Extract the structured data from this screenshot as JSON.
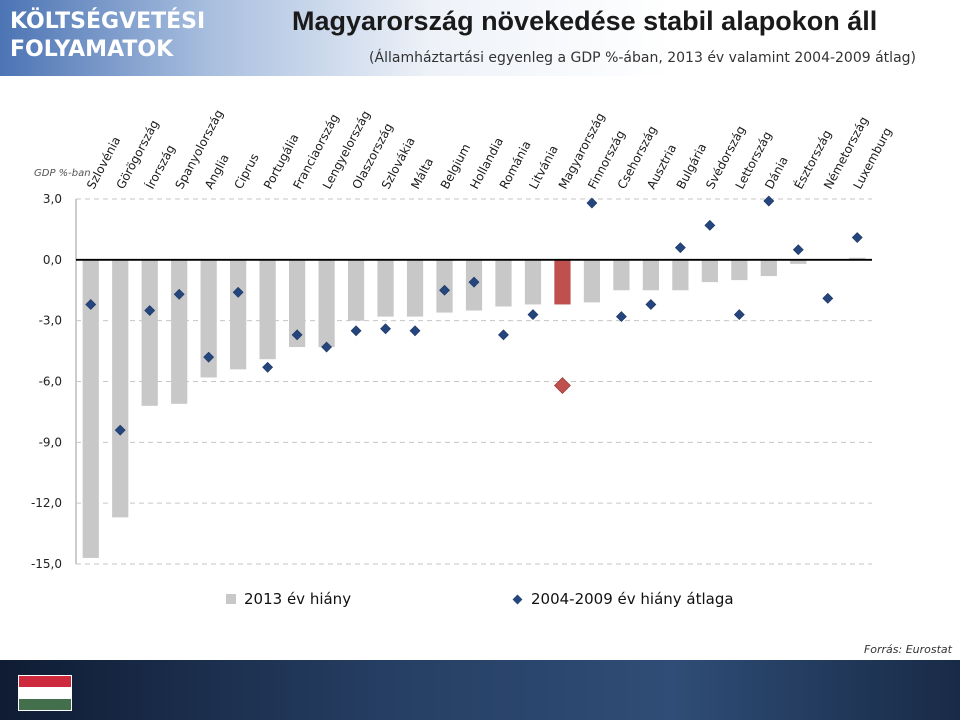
{
  "header": {
    "section_title": "KÖLTSÉGVETÉSI FOLYAMATOK",
    "title": "Magyarország növekedése stabil alapokon áll",
    "subtitle": "(Államháztartási egyenleg a GDP %-ában, 2013 év valamint 2004-2009 átlag)"
  },
  "footer": {
    "source": "Forrás: Eurostat",
    "flag_colors": [
      "#cd2a3e",
      "#ffffff",
      "#436f4d"
    ]
  },
  "chart_data": {
    "type": "bar",
    "ylabel": "GDP %-ban",
    "ylim": [
      -15,
      3
    ],
    "yticks": [
      3,
      0,
      -3,
      -6,
      -9,
      -12,
      -15
    ],
    "ytick_labels": [
      "3,0",
      "0,0",
      "-3,0",
      "-6,0",
      "-9,0",
      "-12,0",
      "-15,0"
    ],
    "grid": true,
    "legend_position": "bottom",
    "highlight_category": "Magyarország",
    "colors": {
      "bar": "#c8c8c8",
      "bar_highlight": "#c0504d",
      "marker": "#25457d",
      "marker_highlight": "#c0504d"
    },
    "categories": [
      "Szlovénia",
      "Görögország",
      "Írország",
      "Spanyolország",
      "Anglia",
      "Ciprus",
      "Portugália",
      "Franciaország",
      "Lengyelország",
      "Olaszország",
      "Szlovákia",
      "Málta",
      "Belgium",
      "Hollandia",
      "Románia",
      "Litvánia",
      "Magyarország",
      "Finnország",
      "Csehország",
      "Ausztria",
      "Bulgária",
      "Svédország",
      "Lettország",
      "Dánia",
      "Észtország",
      "Németország",
      "Luxemburg"
    ],
    "series": [
      {
        "name": "2013 év hiány",
        "kind": "bar",
        "values": [
          -14.7,
          -12.7,
          -7.2,
          -7.1,
          -5.8,
          -5.4,
          -4.9,
          -4.3,
          -4.3,
          -3.0,
          -2.8,
          -2.8,
          -2.6,
          -2.5,
          -2.3,
          -2.2,
          -2.2,
          -2.1,
          -1.5,
          -1.5,
          -1.5,
          -1.1,
          -1.0,
          -0.8,
          -0.2,
          0.0,
          0.1
        ]
      },
      {
        "name": "2004-2009 év hiány átlaga",
        "kind": "marker",
        "values": [
          -2.2,
          -8.4,
          -2.5,
          -1.7,
          -4.8,
          -1.6,
          -5.3,
          -3.7,
          -4.3,
          -3.5,
          -3.4,
          -3.5,
          -1.5,
          -1.1,
          -3.7,
          -2.7,
          -6.2,
          2.8,
          -2.8,
          -2.2,
          0.6,
          1.7,
          -2.7,
          2.9,
          0.5,
          -1.9,
          1.1
        ]
      }
    ]
  }
}
